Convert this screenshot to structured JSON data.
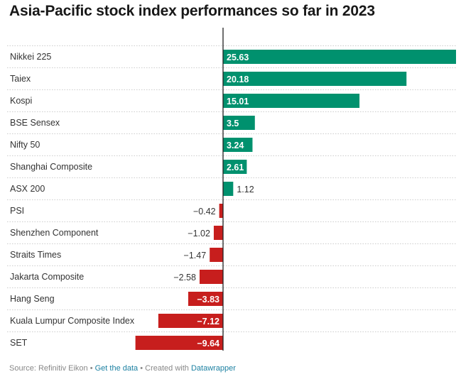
{
  "chart_data": {
    "type": "bar",
    "orientation": "horizontal",
    "title": "Asia-Pacific stock index performances so far in 2023",
    "categories": [
      "Nikkei 225",
      "Taiex",
      "Kospi",
      "BSE Sensex",
      "Nifty 50",
      "Shanghai Composite",
      "ASX 200",
      "PSI",
      "Shenzhen Component",
      "Straits Times",
      "Jakarta Composite",
      "Hang Seng",
      "Kuala Lumpur Composite Index",
      "SET"
    ],
    "values": [
      25.63,
      20.18,
      15.01,
      3.5,
      3.24,
      2.61,
      1.12,
      -0.42,
      -1.02,
      -1.47,
      -2.58,
      -3.83,
      -7.12,
      -9.64
    ],
    "labels": [
      "25.63",
      "20.18",
      "15.01",
      "3.5",
      "3.24",
      "2.61",
      "1.12",
      "−0.42",
      "−1.02",
      "−1.47",
      "−2.58",
      "−3.83",
      "−7.12",
      "−9.64"
    ],
    "xlim": [
      -9.64,
      25.63
    ],
    "colors": {
      "positive": "#00916e",
      "negative": "#c71e1d"
    },
    "grid": false
  },
  "footer": {
    "source": "Source: Refinitiv Eikon • ",
    "get_data": "Get the data",
    "created": " • Created with ",
    "tool": "Datawrapper"
  }
}
